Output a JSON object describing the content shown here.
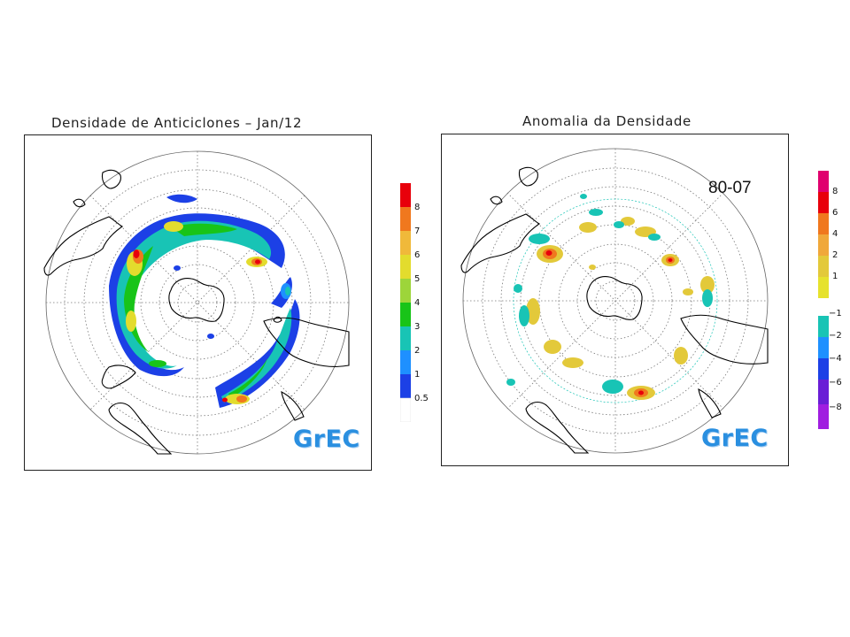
{
  "left_panel": {
    "title": "Densidade de Anticiclones – Jan/12",
    "logo": "GrEC",
    "colorbar": {
      "labels": [
        "8",
        "7",
        "6",
        "5",
        "4",
        "3",
        "2",
        "1",
        "0.5"
      ],
      "colors": [
        "#e8000b",
        "#f0781e",
        "#f0b93a",
        "#e3dc2d",
        "#9dd53a",
        "#18c418",
        "#18c4b5",
        "#1e90ff",
        "#1c40e6",
        "#ffffff"
      ]
    }
  },
  "right_panel": {
    "title": "Anomalia da Densidade",
    "period_label": "80-07",
    "logo": "GrEC",
    "colorbar": {
      "labels": [
        "8",
        "6",
        "4",
        "2",
        "1",
        "−1",
        "−2",
        "−4",
        "−6",
        "−8"
      ],
      "colors": [
        "#e0006e",
        "#e8000b",
        "#f0781e",
        "#f0a83a",
        "#e3c93a",
        "#e6e22d",
        "#ffffff",
        "#18c4b5",
        "#1e90ff",
        "#1c40e6",
        "#6a1ed6",
        "#a01ee0"
      ]
    }
  }
}
